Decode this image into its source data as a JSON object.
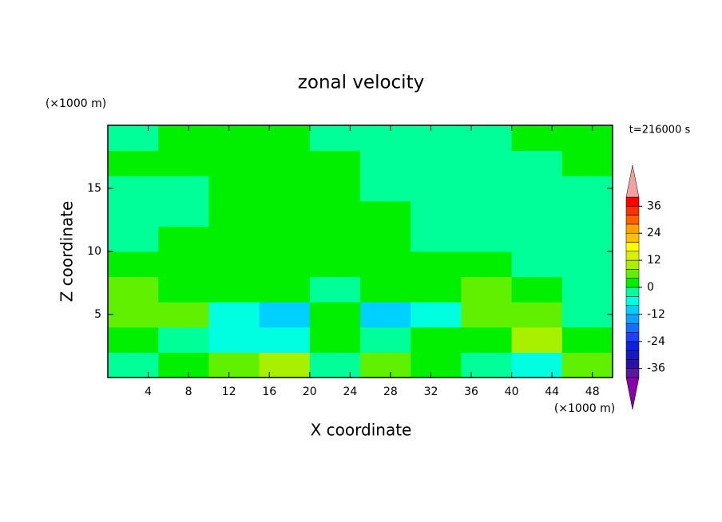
{
  "chart_data": {
    "type": "contour",
    "title": "zonal velocity",
    "x_label": "X coordinate",
    "y_label": "Z coordinate",
    "x_unit": "(×1000 m)",
    "y_unit": "(×1000 m)",
    "annotation": "t=216000 s",
    "xlim": [
      0,
      50
    ],
    "ylim": [
      0,
      20
    ],
    "xticks": [
      4,
      8,
      12,
      16,
      20,
      24,
      28,
      32,
      36,
      40,
      44,
      48
    ],
    "yticks": [
      5,
      10,
      15
    ],
    "x": [
      2.5,
      7.5,
      12.5,
      17.5,
      22.5,
      27.5,
      32.5,
      37.5,
      42.5,
      47.5
    ],
    "y": [
      1,
      3,
      5,
      7,
      9,
      11,
      13,
      15,
      17,
      19
    ],
    "z": [
      [
        -2,
        2,
        6,
        10,
        -2,
        6,
        2,
        -2,
        -6,
        6
      ],
      [
        2,
        -2,
        -6,
        -6,
        2,
        -2,
        2,
        2,
        10,
        2
      ],
      [
        6,
        6,
        -6,
        -10,
        2,
        -10,
        -6,
        6,
        6,
        -2
      ],
      [
        6,
        2,
        2,
        2,
        -2,
        2,
        2,
        6,
        2,
        -2
      ],
      [
        2,
        2,
        2,
        2,
        2,
        2,
        2,
        2,
        -2,
        -2
      ],
      [
        -2,
        2,
        2,
        2,
        2,
        2,
        -2,
        -2,
        -2,
        -2
      ],
      [
        -2,
        -2,
        2,
        2,
        2,
        2,
        -2,
        -2,
        -2,
        -2
      ],
      [
        -2,
        -2,
        2,
        2,
        2,
        -2,
        -2,
        -2,
        -2,
        -2
      ],
      [
        2,
        2,
        2,
        2,
        2,
        -2,
        -2,
        -2,
        -2,
        2
      ],
      [
        -2,
        2,
        2,
        2,
        -2,
        -2,
        -2,
        -2,
        2,
        2
      ]
    ],
    "levels": [
      -40,
      -36,
      -32,
      -28,
      -24,
      -20,
      -16,
      -12,
      -8,
      -4,
      0,
      4,
      8,
      12,
      16,
      20,
      24,
      28,
      32,
      36,
      40
    ],
    "colors": [
      "#5a18a0",
      "#2a10a8",
      "#1818c0",
      "#1020e0",
      "#2040ff",
      "#1070ff",
      "#10a0ff",
      "#00d0ff",
      "#00ffe0",
      "#00ff99",
      "#00f000",
      "#60f000",
      "#a8f000",
      "#d8f000",
      "#ffff00",
      "#ffc000",
      "#ffa000",
      "#ff6000",
      "#ff3000",
      "#ff0000"
    ],
    "extend_colors": [
      "#8800aa",
      "#f4a0a0"
    ],
    "colorbar_ticks": [
      -36,
      -24,
      -12,
      0,
      12,
      24,
      36
    ]
  }
}
